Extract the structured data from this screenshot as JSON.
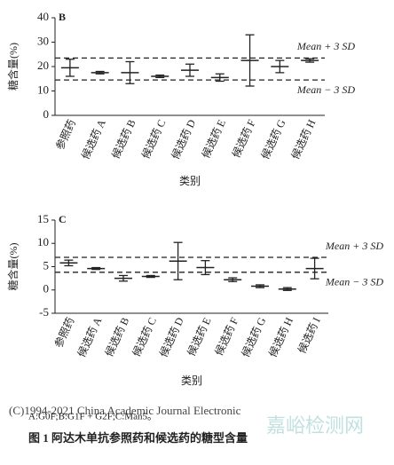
{
  "chart_data": [
    {
      "type": "errorbar",
      "panel": "B",
      "ylabel": "糖含量(%)",
      "xlabel": "类别",
      "categories": [
        "参照药",
        "候选药 A",
        "候选药 B",
        "候选药 C",
        "候选药 D",
        "候选药 E",
        "候选药 F",
        "候选药 G",
        "候选药 H"
      ],
      "values": [
        19.5,
        17.5,
        17.5,
        16,
        18.5,
        15.5,
        22.5,
        20,
        22.5
      ],
      "errors": [
        3.5,
        0.5,
        4.5,
        0.5,
        2.5,
        1.5,
        10.5,
        2.5,
        0.7
      ],
      "ylim": [
        0,
        40
      ],
      "yticks": [
        0,
        10,
        20,
        30,
        40
      ],
      "limits": [
        {
          "value": 23.5,
          "label": "Mean + 3 SD"
        },
        {
          "value": 14.5,
          "label": "Mean − 3 SD"
        }
      ],
      "color": "#222222"
    },
    {
      "type": "errorbar",
      "panel": "C",
      "ylabel": "糖含量(%)",
      "xlabel": "类别",
      "categories": [
        "参照药",
        "候选药 A",
        "候选药 B",
        "候选药 C",
        "候选药 D",
        "候选药 E",
        "候选药 F",
        "候选药 G",
        "候选药 H",
        "候选药 I"
      ],
      "values": [
        5.8,
        4.6,
        2.5,
        2.9,
        6.2,
        4.8,
        2.2,
        0.8,
        0.2,
        4.6
      ],
      "errors": [
        0.6,
        0.2,
        0.6,
        0.2,
        4,
        1.5,
        0.4,
        0.3,
        0.3,
        2.2
      ],
      "ylim": [
        -5,
        15
      ],
      "yticks": [
        -5,
        0,
        5,
        10,
        15
      ],
      "limits": [
        {
          "value": 7,
          "label": "Mean + 3 SD"
        },
        {
          "value": 3.8,
          "label": "Mean − 3 SD"
        }
      ],
      "color": "#222222"
    }
  ],
  "caption": {
    "note": "A:G0F;B:G1F + G2F;C:Man5。",
    "title": "图 1  阿达木单抗参照药和候选药的糖型含量"
  },
  "watermarks": [
    "(C)1994-2021 China Academic Journal Electronic",
    "嘉峪检测网"
  ]
}
